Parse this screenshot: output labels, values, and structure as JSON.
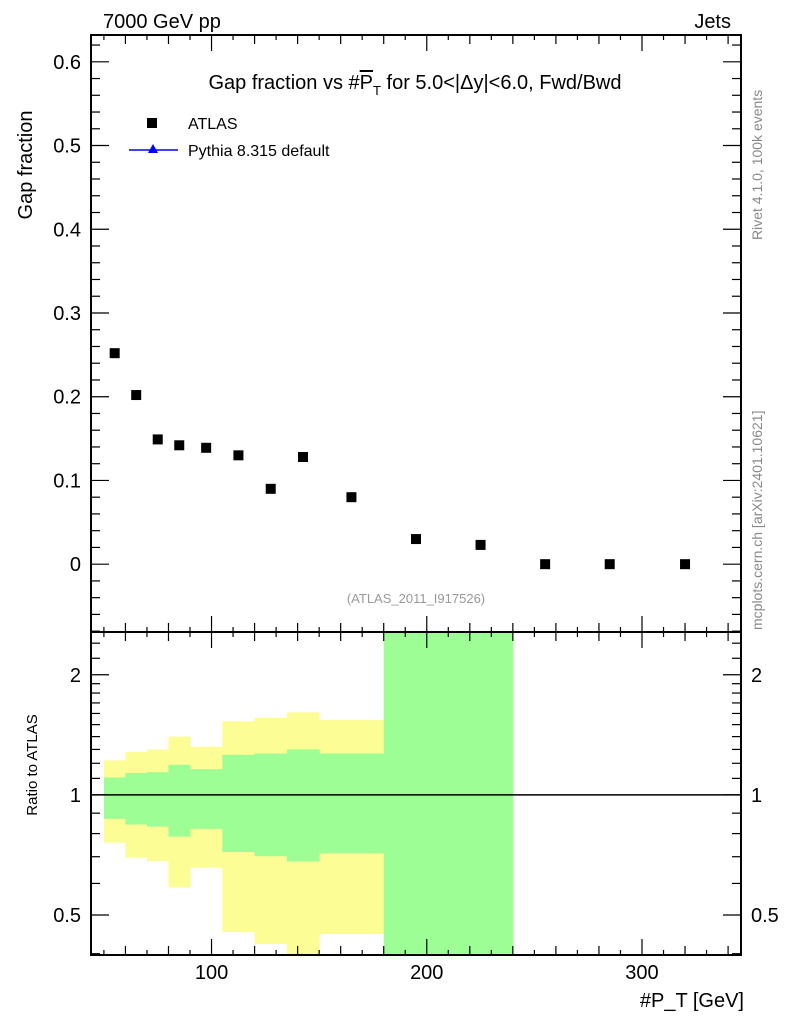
{
  "chart_data": [
    {
      "type": "scatter",
      "title": "Gap fraction vs #P_T for 5.0<|Δy|<6.0, Fwd/Bwd",
      "title_parts": {
        "pre": "Gap fraction vs #",
        "p": "P",
        "sub": "T",
        "post": " for 5.0<|Δy|<6.0, Fwd/Bwd"
      },
      "top_left_label": "7000 GeV pp",
      "top_right_label": "Jets",
      "ylabel": "Gap fraction",
      "xlim": [
        44,
        346
      ],
      "ylim": [
        -0.081,
        0.632
      ],
      "yticks": [
        0,
        0.1,
        0.2,
        0.3,
        0.4,
        0.5,
        0.6
      ],
      "ytick_labels": [
        "0",
        "0.1",
        "0.2",
        "0.3",
        "0.4",
        "0.5",
        "0.6"
      ],
      "legend": {
        "position": "top-left",
        "entries": [
          "ATLAS",
          "Pythia 8.315 default"
        ]
      },
      "series": [
        {
          "name": "ATLAS",
          "marker": "square",
          "color": "#000000",
          "x": [
            55,
            65,
            75,
            85,
            97.5,
            112.5,
            127.5,
            142.5,
            165,
            195,
            225,
            255,
            285,
            320
          ],
          "y": [
            0.252,
            0.202,
            0.149,
            0.142,
            0.139,
            0.13,
            0.09,
            0.128,
            0.08,
            0.03,
            0.023,
            0.0,
            0.0,
            0.0
          ]
        },
        {
          "name": "Pythia 8.315 default",
          "marker": "triangle",
          "color": "#0000ff",
          "x": [],
          "y": []
        }
      ],
      "analysis_id": "(ATLAS_2011_I917526)",
      "side_labels": [
        "Rivet 4.1.0,  100k events",
        "mcplots.cern.ch [arXiv:2401.10621]"
      ]
    },
    {
      "type": "area",
      "ylabel": "Ratio to ATLAS",
      "xlabel_parts": {
        "pre": "#",
        "p": "P",
        "sub": "T",
        "post": " [GeV]"
      },
      "xlabel": "#P_T [GeV]",
      "yscale": "log",
      "xlim": [
        44,
        346
      ],
      "ylim": [
        0.397,
        2.56
      ],
      "xticks": [
        100,
        200,
        300
      ],
      "xtick_labels": [
        "100",
        "200",
        "300"
      ],
      "yticks": [
        0.5,
        1,
        2
      ],
      "ytick_labels": [
        "0.5",
        "1",
        "2"
      ],
      "reference_line": 1,
      "bin_edges": [
        50,
        60,
        70,
        80,
        90,
        105,
        120,
        135,
        150,
        180,
        210,
        240
      ],
      "bands": [
        {
          "name": "stat uncertainty",
          "color": "#9cfe94",
          "lo": [
            0.871,
            0.843,
            0.833,
            0.786,
            0.822,
            0.719,
            0.702,
            0.681,
            0.714,
            0.3,
            0.3
          ],
          "hi": [
            1.106,
            1.135,
            1.14,
            1.19,
            1.16,
            1.26,
            1.27,
            1.3,
            1.27,
            3.0,
            3.0
          ]
        },
        {
          "name": "total uncertainty",
          "color": "#fdfd96",
          "lo": [
            0.759,
            0.696,
            0.682,
            0.586,
            0.657,
            0.453,
            0.423,
            0.35,
            0.448,
            0.3,
            0.3
          ],
          "hi": [
            1.22,
            1.28,
            1.3,
            1.4,
            1.32,
            1.53,
            1.56,
            1.61,
            1.54,
            3.0,
            3.0
          ]
        }
      ]
    }
  ]
}
